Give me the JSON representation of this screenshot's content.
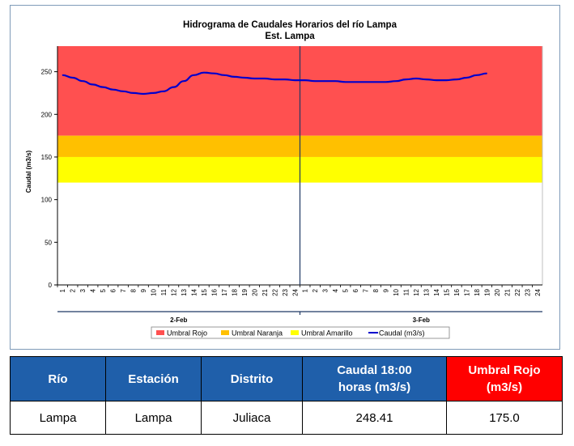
{
  "chart_data": {
    "type": "line",
    "title": "Hidrograma de Caudales Horarios del río Lampa",
    "subtitle": "Est. Lampa",
    "ylabel": "Caudal  (m3/s)",
    "ylim": [
      0,
      280
    ],
    "yticks": [
      "0",
      "50",
      "100",
      "150",
      "200",
      "250"
    ],
    "day_labels": [
      "2-Feb",
      "3-Feb"
    ],
    "hour_labels": [
      "1",
      "2",
      "3",
      "4",
      "5",
      "6",
      "7",
      "8",
      "9",
      "10",
      "11",
      "12",
      "13",
      "14",
      "15",
      "16",
      "17",
      "18",
      "19",
      "20",
      "21",
      "22",
      "23",
      "24",
      "1",
      "2",
      "3",
      "4",
      "5",
      "6",
      "7",
      "8",
      "9",
      "10",
      "11",
      "12",
      "13",
      "14",
      "15",
      "16",
      "17",
      "18",
      "19",
      "20",
      "21",
      "22",
      "23",
      "24"
    ],
    "bands": [
      {
        "name": "Umbral Rojo",
        "from": 175,
        "to": 280,
        "color": "#ff5050"
      },
      {
        "name": "Umbral Naranja",
        "from": 150,
        "to": 175,
        "color": "#ffc000"
      },
      {
        "name": "Umbral Amarillo",
        "from": 120,
        "to": 150,
        "color": "#ffff00"
      }
    ],
    "series": [
      {
        "name": "Caudal (m3/s)",
        "color": "#0000cc",
        "x": [
          1,
          2,
          3,
          4,
          5,
          6,
          7,
          8,
          9,
          10,
          11,
          12,
          13,
          14,
          15,
          16,
          17,
          18,
          19,
          20,
          21,
          22,
          23,
          24,
          25,
          26,
          27,
          28,
          29,
          30,
          31,
          32,
          33,
          34,
          35,
          36,
          37,
          38,
          39,
          40,
          41,
          42,
          43
        ],
        "values": [
          246,
          243,
          239,
          235,
          232,
          229,
          227,
          225,
          224,
          225,
          227,
          232,
          239,
          246,
          249,
          248,
          246,
          244,
          243,
          242,
          242,
          241,
          241,
          240,
          240,
          239,
          239,
          239,
          238,
          238,
          238,
          238,
          238,
          239,
          241,
          242,
          241,
          240,
          240,
          241,
          243,
          246,
          248
        ]
      }
    ]
  },
  "table": {
    "headers": {
      "rio": "Río",
      "estacion": "Estación",
      "distrito": "Distrito",
      "caudal_line1": "Caudal  18:00",
      "caudal_line2": "horas (m3/s)",
      "umbral_line1": "Umbral Rojo",
      "umbral_line2": "(m3/s)"
    },
    "row": {
      "rio": "Lampa",
      "estacion": "Lampa",
      "distrito": "Juliaca",
      "caudal": "248.41",
      "umbral": "175.0"
    }
  }
}
